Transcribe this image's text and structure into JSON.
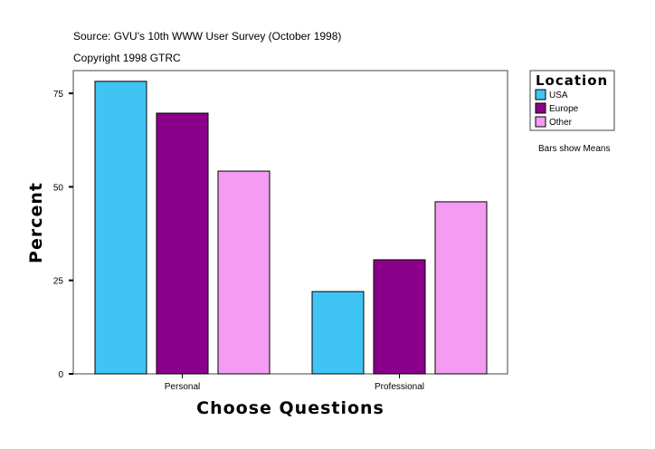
{
  "chart_data": {
    "type": "bar",
    "title": "Source: GVU's 10th WWW User Survey (October 1998)",
    "subtitle": "Copyright 1998 GTRC",
    "xlabel": "Choose Questions",
    "ylabel": "Percent",
    "categories": [
      "Personal",
      "Professional"
    ],
    "ylim": [
      0,
      81
    ],
    "yticks": [
      0,
      25,
      50,
      75
    ],
    "grid": false,
    "legend_title": "Location",
    "legend_placement": "right",
    "note": "Bars show Means",
    "series": [
      {
        "name": "USA",
        "color": "#40c4f4",
        "values": [
          78.2,
          22.0
        ]
      },
      {
        "name": "Europe",
        "color": "#8b008b",
        "values": [
          69.7,
          30.5
        ]
      },
      {
        "name": "Other",
        "color": "#f49cf4",
        "values": [
          54.2,
          46.0
        ]
      }
    ]
  }
}
